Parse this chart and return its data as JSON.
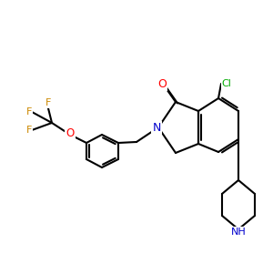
{
  "background_color": "#ffffff",
  "bond_color": "#000000",
  "atom_colors": {
    "O": "#ff0000",
    "N": "#0000cc",
    "Cl": "#00aa00",
    "F": "#cc8800",
    "C": "#000000"
  },
  "figsize": [
    3.0,
    3.0
  ],
  "dpi": 100
}
